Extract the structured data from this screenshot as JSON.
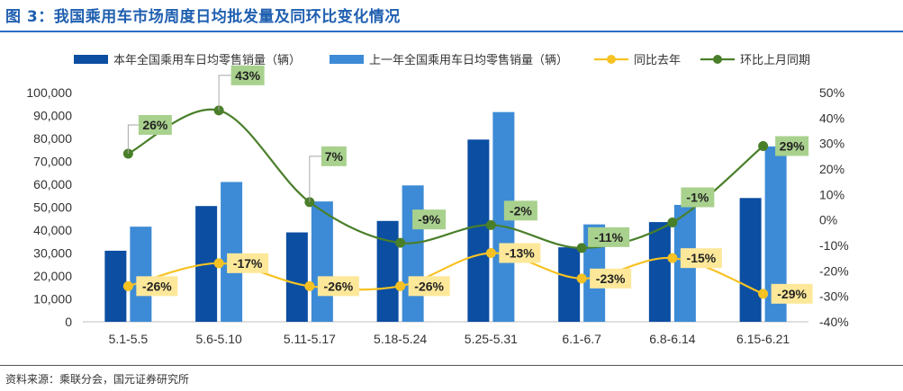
{
  "title": "图 3：我国乘用车市场周度日均批发量及同环比变化情况",
  "source": "资料来源：乘联分会，国元证券研究所",
  "colors": {
    "bar_current": "#0b4ea2",
    "bar_prev": "#3d8bd6",
    "line_yoy": "#f6c223",
    "line_mom": "#4a7f2a",
    "label_yoy_bg": "#fde89a",
    "label_mom_bg": "#a9d18e",
    "axis_text": "#333333"
  },
  "chart_data": {
    "type": "bar",
    "categories": [
      "5.1-5.5",
      "5.6-5.10",
      "5.11-5.17",
      "5.18-5.24",
      "5.25-5.31",
      "6.1-6.7",
      "6.8-6.14",
      "6.15-6.21"
    ],
    "series": [
      {
        "name": "本年全国乘用车日均零售销量（辆）",
        "type": "bar",
        "axis": "left",
        "values": [
          31000,
          50500,
          39000,
          44000,
          79500,
          32500,
          43500,
          54000
        ]
      },
      {
        "name": "上一年全国乘用车日均零售销量（辆）",
        "type": "bar",
        "axis": "left",
        "values": [
          41500,
          61000,
          52500,
          59500,
          91500,
          42500,
          51000,
          76500
        ]
      },
      {
        "name": "同比去年",
        "type": "line",
        "axis": "right",
        "values": [
          -26,
          -17,
          -26,
          -26,
          -13,
          -23,
          -15,
          -29
        ],
        "labels": [
          "-26%",
          "-17%",
          "-26%",
          "-26%",
          "-13%",
          "-23%",
          "-15%",
          "-29%"
        ]
      },
      {
        "name": "环比上月同期",
        "type": "line",
        "axis": "right",
        "values": [
          26,
          43,
          7,
          -9,
          -2,
          -11,
          -1,
          29
        ],
        "labels": [
          "26%",
          "43%",
          "7%",
          "-9%",
          "-2%",
          "-11%",
          "-1%",
          "29%"
        ]
      }
    ],
    "y_left": {
      "min": 0,
      "max": 100000,
      "ticks": [
        "0",
        "10,000",
        "20,000",
        "30,000",
        "40,000",
        "50,000",
        "60,000",
        "70,000",
        "80,000",
        "90,000",
        "100,000"
      ]
    },
    "y_right": {
      "min": -40,
      "max": 50,
      "ticks": [
        "-40%",
        "-30%",
        "-20%",
        "-10%",
        "0%",
        "10%",
        "20%",
        "30%",
        "40%",
        "50%"
      ]
    },
    "grid": false,
    "legend_position": "top"
  }
}
